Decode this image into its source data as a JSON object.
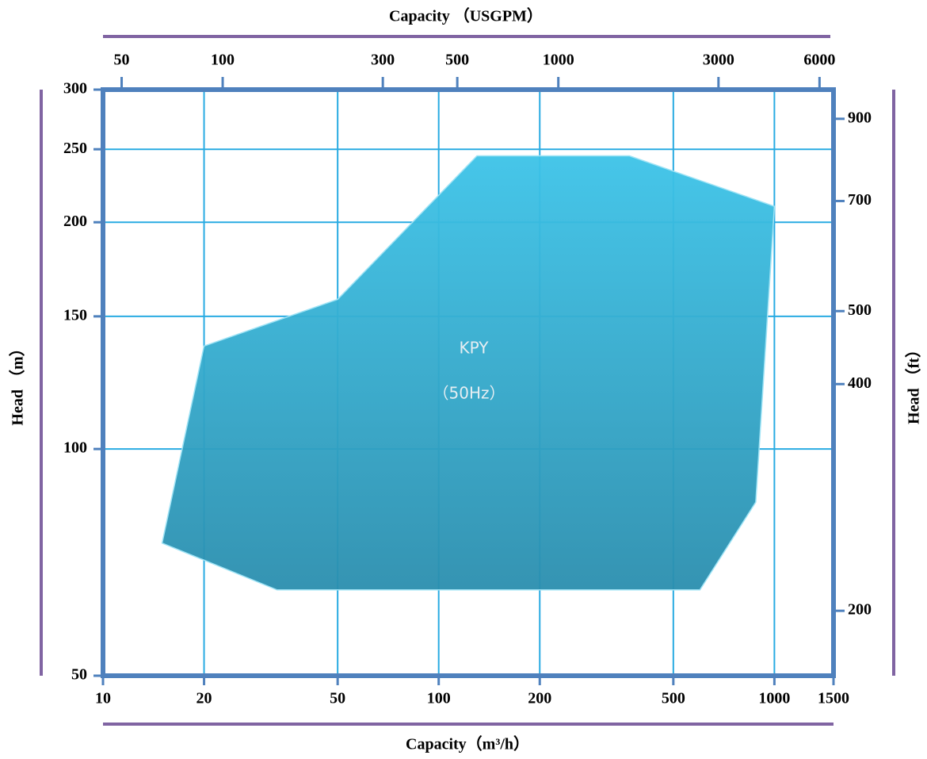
{
  "chart_data": {
    "type": "area",
    "title": "Capacity （USGPM）",
    "x_label": "Capacity（m³/h）",
    "y_label": "Head （m）",
    "y2_label": "Head （ft）",
    "xscale": "log",
    "yscale": "log",
    "grid": true,
    "xlim": [
      10,
      1500
    ],
    "xticks": [
      10,
      20,
      50,
      100,
      200,
      500,
      1000,
      1500
    ],
    "x2lim": [
      44,
      6604
    ],
    "x2ticks": [
      50,
      100,
      300,
      500,
      1000,
      3000,
      6000
    ],
    "ylim": [
      50,
      300
    ],
    "yticks": [
      50,
      100,
      150,
      200,
      250,
      300
    ],
    "y2lim": [
      164,
      984
    ],
    "y2ticks": [
      200,
      400,
      500,
      700,
      900
    ],
    "series": [
      {
        "name": "KPY",
        "subname": "（50Hz）",
        "color": "#33b4dc",
        "x": [
          15,
          20,
          50,
          130,
          370,
          1000,
          880,
          600,
          33
        ],
        "values": [
          75,
          137,
          158,
          245,
          245,
          210,
          85,
          65,
          65
        ]
      }
    ]
  }
}
